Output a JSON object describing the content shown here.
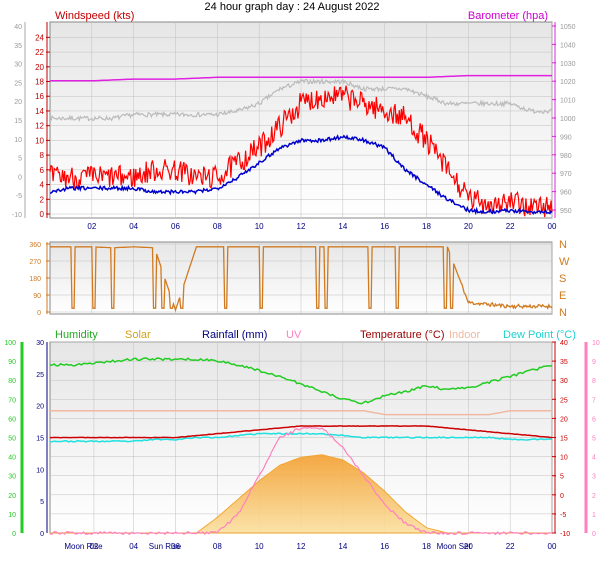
{
  "title": "24 hour graph day : 24 August 2022",
  "colors": {
    "wind_axis": "#c00000",
    "wind_speed": "#ff0000",
    "wind_avg": "#0000cc",
    "wind_gust_avg": "#bbbbbb",
    "barometer": "#e020e0",
    "direction": "#d07a20",
    "humidity": "#22cc22",
    "solar": "#f4b030",
    "rainfall": "#000080",
    "uv": "#ff80c0",
    "temperature": "#cc0000",
    "indoor": "#f0b8a0",
    "dew_point": "#20e0e0",
    "grid": "#c0c0c0",
    "panel_top": "#e8e8e8",
    "panel_bottom": "#ffffff"
  },
  "chart_data": [
    {
      "type": "line",
      "name": "wind_pressure",
      "title": "24 hour graph day : 24 August 2022",
      "left_label": "Windspeed (kts)",
      "right_label": "Barometer (hpa)",
      "x_ticks": [
        "02",
        "04",
        "06",
        "08",
        "10",
        "12",
        "14",
        "16",
        "18",
        "20",
        "22",
        "00"
      ],
      "left_ticks_red": [
        24,
        22,
        20,
        18,
        16,
        14,
        12,
        10,
        8,
        6,
        4,
        2,
        0
      ],
      "left_ticks_grey": [
        40,
        35,
        30,
        25,
        20,
        15,
        10,
        5,
        0,
        -5,
        -10
      ],
      "right_ticks": [
        1050,
        1040,
        1030,
        1020,
        1010,
        1000,
        990,
        980,
        970,
        960,
        950
      ],
      "ylim_left": [
        0,
        25
      ],
      "ylim_right": [
        945,
        1050
      ],
      "x": [
        0,
        1,
        2,
        3,
        4,
        5,
        6,
        7,
        8,
        9,
        10,
        11,
        12,
        13,
        14,
        15,
        16,
        17,
        18,
        19,
        20,
        21,
        22,
        23,
        24
      ],
      "series": [
        {
          "key": "wind_speed",
          "values": [
            5,
            5,
            5,
            5,
            5,
            6,
            6,
            5,
            5,
            7,
            9,
            12,
            15,
            16,
            16,
            15,
            14,
            13,
            10,
            6,
            2,
            1.5,
            1.5,
            1,
            1
          ]
        },
        {
          "key": "wind_avg",
          "values": [
            3,
            3.5,
            3.5,
            3.5,
            3.5,
            3,
            3,
            3,
            3.5,
            5,
            7,
            9,
            10,
            10,
            10.5,
            10,
            9,
            6,
            4,
            2,
            0.5,
            0.3,
            0.5,
            0.3,
            0.3
          ]
        },
        {
          "key": "wind_gust_avg",
          "values": [
            13,
            13,
            13,
            13,
            13.5,
            13.5,
            13.5,
            13.5,
            13.5,
            14,
            15,
            17,
            18,
            18,
            18,
            17,
            17,
            17,
            16,
            15,
            15,
            15,
            15,
            14,
            14
          ]
        },
        {
          "key": "barometer",
          "values": [
            1021,
            1021,
            1021,
            1021.5,
            1022,
            1022,
            1022,
            1022.5,
            1023,
            1023,
            1023,
            1023,
            1023,
            1023,
            1023,
            1023,
            1023,
            1023,
            1023,
            1023.5,
            1024,
            1024,
            1024,
            1024,
            1024
          ]
        }
      ]
    },
    {
      "type": "line",
      "name": "wind_direction",
      "left_ticks": [
        360,
        270,
        180,
        90,
        0
      ],
      "right_labels": [
        "N",
        "W",
        "S",
        "E",
        "N"
      ],
      "ylim": [
        0,
        360
      ],
      "x": [
        0,
        1,
        2,
        3,
        4,
        5,
        6,
        7,
        8,
        9,
        10,
        11,
        12,
        13,
        14,
        15,
        16,
        17,
        18,
        19,
        20,
        21,
        22,
        23,
        24
      ],
      "series": [
        {
          "key": "direction",
          "values": [
            345,
            345,
            345,
            340,
            345,
            340,
            10,
            345,
            345,
            345,
            345,
            345,
            345,
            345,
            345,
            345,
            345,
            345,
            345,
            345,
            50,
            40,
            30,
            30,
            30
          ]
        }
      ]
    },
    {
      "type": "area",
      "name": "temp_humidity_solar",
      "legend": [
        "Humidity",
        "Solar",
        "Rainfall (mm)",
        "UV",
        "Temperature (°C)",
        "Indoor",
        "Dew Point (°C)"
      ],
      "x_ticks": [
        "Moon Rise",
        "02",
        "04",
        "Sun Rise",
        "06",
        "08",
        "10",
        "12",
        "14",
        "16",
        "18",
        "Moon Set",
        "20",
        "22",
        "00"
      ],
      "humidity_ticks": [
        100,
        90,
        80,
        70,
        60,
        50,
        40,
        30,
        20,
        10,
        0
      ],
      "rain_ticks": [
        30,
        25,
        20,
        15,
        10,
        5,
        0
      ],
      "temp_ticks": [
        40,
        35,
        30,
        25,
        20,
        15,
        10,
        5,
        0,
        -5,
        -10
      ],
      "uv_ticks": [
        10,
        9,
        8,
        7,
        6,
        5,
        4,
        3,
        2,
        1,
        0
      ],
      "ylim_humidity": [
        0,
        100
      ],
      "ylim_temp": [
        -10,
        40
      ],
      "x": [
        0,
        1,
        2,
        3,
        4,
        5,
        6,
        7,
        8,
        9,
        10,
        11,
        12,
        13,
        14,
        15,
        16,
        17,
        18,
        19,
        20,
        21,
        22,
        23,
        24
      ],
      "series": [
        {
          "key": "humidity",
          "values": [
            88,
            88,
            89,
            90,
            91,
            91,
            91,
            91,
            90,
            88,
            85,
            82,
            78,
            74,
            70,
            68,
            72,
            74,
            77,
            75,
            76,
            79,
            82,
            85,
            88
          ]
        },
        {
          "key": "temperature",
          "values": [
            15,
            15,
            15,
            15,
            15,
            15,
            15,
            15.5,
            16,
            16.5,
            17,
            17.5,
            18,
            18,
            18,
            18,
            18,
            18,
            18,
            17.5,
            17,
            16.5,
            16,
            15.5,
            15
          ]
        },
        {
          "key": "indoor",
          "values": [
            22,
            22,
            22,
            22,
            22,
            22,
            22,
            22,
            22,
            22,
            22,
            22,
            22,
            22,
            22,
            22,
            21,
            21,
            21,
            21,
            21,
            21,
            22,
            22,
            22
          ]
        },
        {
          "key": "dew_point",
          "values": [
            14,
            14,
            14,
            14,
            14,
            14.5,
            14.5,
            15,
            15,
            15.5,
            16,
            16,
            16,
            16,
            15.5,
            15,
            15,
            15,
            15,
            15,
            15,
            15,
            14.5,
            14.5,
            14.5
          ]
        },
        {
          "key": "solar",
          "values": [
            0,
            0,
            0,
            0,
            0,
            0,
            0,
            0,
            60,
            130,
            200,
            260,
            290,
            300,
            280,
            230,
            160,
            80,
            20,
            0,
            0,
            0,
            0,
            0,
            0
          ]
        },
        {
          "key": "uv",
          "values": [
            0,
            0,
            0,
            0,
            0,
            0,
            0,
            0,
            0,
            1,
            3,
            5,
            5.5,
            5.5,
            4.5,
            3,
            1.5,
            0.5,
            0,
            0,
            0,
            0,
            0,
            0,
            0
          ]
        },
        {
          "key": "rainfall",
          "values": [
            0,
            0,
            0,
            0,
            0,
            0,
            0,
            0,
            0,
            0,
            0,
            0,
            0,
            0,
            0,
            0,
            0,
            0,
            0,
            0,
            0,
            0,
            0,
            0,
            0
          ]
        }
      ],
      "solar_max": 300
    }
  ]
}
